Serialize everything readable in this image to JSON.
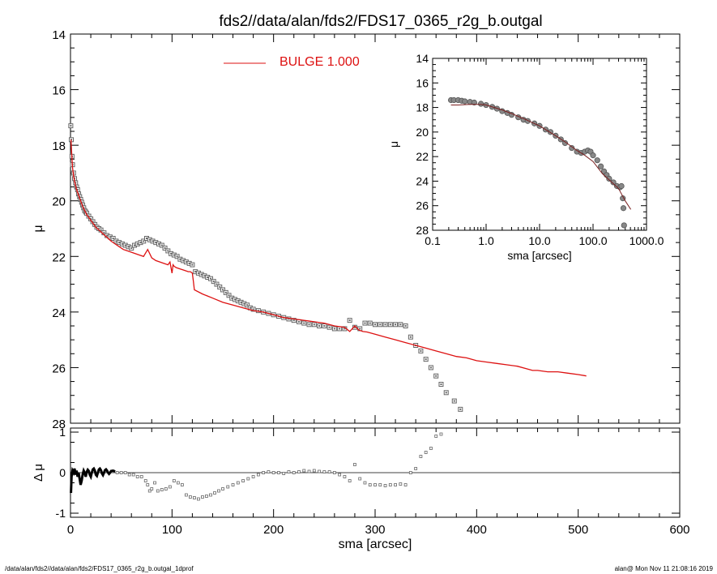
{
  "title": "fds2//data/alan/fds2/FDS17_0365_r2g_b.outgal",
  "footer_left": "/data/alan/fds2//data/alan/fds2/FDS17_0365_r2g_b.outgal_1dprof",
  "footer_right": "alan@  Mon Nov 11 21:08:16 2019",
  "colors": {
    "model": "#dd1111",
    "data": "#666666",
    "axis": "#000000"
  },
  "chart_data": [
    {
      "id": "main",
      "type": "scatter",
      "xlabel": "",
      "ylabel": "μ",
      "xlim": [
        0,
        600
      ],
      "ylim": [
        28,
        14
      ],
      "yticks": [
        14,
        16,
        18,
        20,
        22,
        24,
        26,
        28
      ],
      "xticks": [
        0,
        100,
        200,
        300,
        400,
        500,
        600
      ],
      "legend": {
        "label": "BULGE  1.000",
        "position": "top-center"
      },
      "series": [
        {
          "name": "BULGE  1.000",
          "kind": "line",
          "x": [
            0.5,
            1,
            2,
            3,
            4,
            6,
            8,
            10,
            12,
            14,
            16,
            18,
            20,
            22,
            25,
            28,
            31,
            34,
            37,
            40,
            44,
            48,
            52,
            56,
            60,
            64,
            68,
            72,
            76,
            80,
            84,
            88,
            92,
            96,
            98,
            100,
            101,
            102,
            104,
            108,
            112,
            116,
            118,
            120,
            121,
            122,
            130,
            140,
            150,
            160,
            170,
            180,
            190,
            200,
            210,
            220,
            230,
            240,
            250,
            260,
            270,
            275,
            280,
            284,
            288,
            292,
            300,
            310,
            320,
            330,
            340,
            350,
            360,
            370,
            380,
            390,
            400,
            410,
            420,
            430,
            440,
            450,
            455,
            460,
            470,
            480,
            490,
            500,
            508
          ],
          "y": [
            17.8,
            18.2,
            18.8,
            19.1,
            19.3,
            19.6,
            19.8,
            20.0,
            20.2,
            20.35,
            20.5,
            20.6,
            20.7,
            20.8,
            20.95,
            21.05,
            21.15,
            21.25,
            21.35,
            21.45,
            21.55,
            21.65,
            21.75,
            21.8,
            21.85,
            21.9,
            21.95,
            22.0,
            21.75,
            22.05,
            22.15,
            22.2,
            22.25,
            22.3,
            22.2,
            22.6,
            22.3,
            22.35,
            22.4,
            22.45,
            22.5,
            22.55,
            22.55,
            22.6,
            22.9,
            23.2,
            23.35,
            23.5,
            23.65,
            23.75,
            23.85,
            23.95,
            24.0,
            24.1,
            24.2,
            24.25,
            24.3,
            24.35,
            24.4,
            24.5,
            24.55,
            24.7,
            24.5,
            24.65,
            24.7,
            24.72,
            24.8,
            24.9,
            25.0,
            25.1,
            25.2,
            25.3,
            25.4,
            25.5,
            25.6,
            25.65,
            25.75,
            25.8,
            25.85,
            25.9,
            25.95,
            26.05,
            26.1,
            26.1,
            26.15,
            26.15,
            26.2,
            26.25,
            26.3
          ]
        },
        {
          "name": "",
          "kind": "points",
          "x": [
            0.3,
            0.8,
            1.5,
            2,
            3,
            4,
            5,
            6,
            7,
            8,
            9,
            10,
            11,
            12,
            13,
            14,
            15,
            16,
            18,
            20,
            22,
            24,
            26,
            28,
            30,
            33,
            36,
            39,
            42,
            45,
            48,
            51,
            54,
            57,
            60,
            63,
            66,
            69,
            72,
            75,
            78,
            81,
            84,
            87,
            90,
            93,
            96,
            99,
            102,
            105,
            108,
            111,
            114,
            117,
            120,
            123,
            126,
            129,
            132,
            135,
            138,
            141,
            144,
            147,
            150,
            153,
            156,
            159,
            162,
            165,
            168,
            171,
            174,
            177,
            180,
            185,
            190,
            195,
            200,
            205,
            210,
            215,
            220,
            225,
            230,
            235,
            240,
            245,
            250,
            255,
            260,
            265,
            270,
            275,
            280,
            285,
            290,
            295,
            300,
            305,
            310,
            315,
            320,
            325,
            330,
            335,
            340,
            345,
            350,
            355,
            360,
            365,
            370,
            378,
            384
          ],
          "y": [
            17.3,
            17.8,
            18.4,
            18.7,
            19.0,
            19.2,
            19.35,
            19.5,
            19.6,
            19.75,
            19.85,
            19.95,
            20.05,
            20.15,
            20.25,
            20.35,
            20.4,
            20.45,
            20.55,
            20.65,
            20.75,
            20.85,
            20.95,
            21.0,
            21.05,
            21.15,
            21.25,
            21.3,
            21.35,
            21.45,
            21.5,
            21.55,
            21.6,
            21.65,
            21.7,
            21.6,
            21.55,
            21.5,
            21.45,
            21.35,
            21.4,
            21.45,
            21.5,
            21.55,
            21.6,
            21.7,
            21.8,
            21.9,
            21.95,
            22.0,
            22.1,
            22.15,
            22.2,
            22.25,
            22.3,
            22.55,
            22.6,
            22.65,
            22.7,
            22.75,
            22.8,
            22.9,
            23.0,
            23.1,
            23.2,
            23.3,
            23.4,
            23.5,
            23.55,
            23.6,
            23.65,
            23.7,
            23.75,
            23.85,
            23.9,
            23.95,
            24.0,
            24.05,
            24.1,
            24.15,
            24.2,
            24.25,
            24.3,
            24.35,
            24.4,
            24.45,
            24.45,
            24.5,
            24.5,
            24.55,
            24.6,
            24.6,
            24.6,
            24.3,
            24.55,
            24.6,
            24.4,
            24.4,
            24.45,
            24.45,
            24.45,
            24.45,
            24.45,
            24.45,
            24.5,
            24.9,
            25.2,
            25.4,
            25.7,
            26.0,
            26.3,
            26.6,
            26.9,
            27.2,
            27.5
          ]
        }
      ]
    },
    {
      "id": "residual",
      "type": "scatter",
      "xlabel": "sma [arcsec]",
      "ylabel": "Δ μ",
      "xlim": [
        0,
        600
      ],
      "ylim": [
        -1.1,
        1.1
      ],
      "yticks": [
        -1,
        0,
        1
      ],
      "xticks": [
        0,
        100,
        200,
        300,
        400,
        500,
        600
      ],
      "series": [
        {
          "name": "",
          "kind": "line",
          "x": [
            0.5,
            1,
            2,
            3,
            4,
            5,
            6,
            7,
            8,
            9,
            10,
            11,
            12,
            13,
            14,
            15,
            16,
            17,
            18,
            19,
            20,
            21,
            22,
            23,
            24,
            25,
            26,
            27,
            28,
            29,
            30,
            31,
            32,
            33,
            34,
            35,
            36,
            37,
            38,
            39,
            40,
            42,
            44
          ],
          "y": [
            -0.5,
            -0.1,
            0.05,
            0.0,
            0.1,
            -0.05,
            0.05,
            -0.1,
            0.0,
            -0.15,
            -0.3,
            -0.2,
            -0.05,
            0.05,
            0.0,
            -0.1,
            0.02,
            0.07,
            0.04,
            -0.05,
            -0.1,
            0.0,
            0.08,
            0.1,
            0.05,
            -0.05,
            -0.08,
            0.0,
            0.08,
            0.1,
            0.06,
            -0.02,
            -0.06,
            0.0,
            0.06,
            0.08,
            0.05,
            0.0,
            -0.03,
            0.0,
            0.04,
            0.05,
            0.03
          ]
        },
        {
          "name": "",
          "kind": "points",
          "x": [
            46,
            50,
            54,
            58,
            62,
            66,
            70,
            74,
            76,
            78,
            80,
            83,
            86,
            90,
            94,
            98,
            102,
            106,
            110,
            114,
            118,
            122,
            126,
            130,
            134,
            138,
            142,
            146,
            150,
            155,
            160,
            165,
            170,
            175,
            180,
            185,
            190,
            195,
            200,
            205,
            210,
            215,
            220,
            225,
            230,
            235,
            240,
            245,
            250,
            255,
            260,
            265,
            270,
            275,
            280,
            285,
            290,
            295,
            300,
            305,
            310,
            315,
            320,
            325,
            330,
            335,
            340,
            345,
            350,
            355,
            360,
            365
          ],
          "y": [
            0.0,
            0.0,
            0.0,
            -0.05,
            -0.05,
            -0.1,
            -0.1,
            -0.2,
            -0.3,
            -0.45,
            -0.4,
            -0.25,
            -0.45,
            -0.42,
            -0.4,
            -0.35,
            -0.2,
            -0.25,
            -0.3,
            -0.55,
            -0.6,
            -0.62,
            -0.65,
            -0.6,
            -0.58,
            -0.55,
            -0.5,
            -0.45,
            -0.4,
            -0.35,
            -0.3,
            -0.25,
            -0.2,
            -0.15,
            -0.1,
            -0.05,
            0.0,
            0.02,
            0.0,
            0.0,
            -0.02,
            0.02,
            0.0,
            0.02,
            0.05,
            0.03,
            0.05,
            0.03,
            0.02,
            0.02,
            0.0,
            -0.05,
            -0.1,
            -0.2,
            0.2,
            -0.15,
            -0.25,
            -0.3,
            -0.3,
            -0.3,
            -0.32,
            -0.3,
            -0.3,
            -0.28,
            -0.3,
            0.0,
            0.1,
            0.4,
            0.5,
            0.6,
            0.9,
            0.95
          ]
        }
      ]
    },
    {
      "id": "inset",
      "type": "scatter",
      "xlabel": "sma [arcsec]",
      "ylabel": "μ",
      "xscale": "log",
      "xlim": [
        0.1,
        1000.0
      ],
      "ylim": [
        28,
        14
      ],
      "yticks": [
        14,
        16,
        18,
        20,
        22,
        24,
        26,
        28
      ],
      "xticks": [
        0.1,
        1.0,
        10.0,
        100.0,
        1000.0
      ],
      "xticklabels": [
        "0.1",
        "1.0",
        "10.0",
        "100.0",
        "1000.0"
      ],
      "series": [
        {
          "name": "",
          "kind": "points",
          "x": [
            0.22,
            0.25,
            0.3,
            0.35,
            0.4,
            0.5,
            0.6,
            0.8,
            1.0,
            1.3,
            1.6,
            2.0,
            2.5,
            3.0,
            4.0,
            5.0,
            6.0,
            8.0,
            10.0,
            13.0,
            16.0,
            20.0,
            25.0,
            30.0,
            40.0,
            50.0,
            60.0,
            70.0,
            80.0,
            90.0,
            100.0,
            120.0,
            140.0,
            160.0,
            180.0,
            200.0,
            240.0,
            280.0,
            320.0,
            340.0,
            360.0,
            370.0,
            380.0
          ],
          "y": [
            17.4,
            17.4,
            17.4,
            17.45,
            17.5,
            17.55,
            17.6,
            17.7,
            17.8,
            17.95,
            18.1,
            18.3,
            18.45,
            18.6,
            18.8,
            19.0,
            19.1,
            19.3,
            19.5,
            19.8,
            20.0,
            20.3,
            20.6,
            20.9,
            21.3,
            21.6,
            21.7,
            21.6,
            21.5,
            21.6,
            21.9,
            22.3,
            22.8,
            23.2,
            23.5,
            23.8,
            24.1,
            24.4,
            24.5,
            24.4,
            25.4,
            26.2,
            27.6
          ]
        },
        {
          "name": "",
          "kind": "line",
          "x": [
            0.22,
            0.3,
            0.5,
            0.8,
            1.0,
            2.0,
            3.0,
            5.0,
            10.0,
            20.0,
            30.0,
            50.0,
            70.0,
            100.0,
            150.0,
            200.0,
            300.0,
            400.0,
            508.0
          ],
          "y": [
            17.8,
            17.8,
            17.75,
            17.75,
            17.8,
            18.2,
            18.5,
            18.9,
            19.5,
            20.3,
            20.8,
            21.5,
            21.9,
            22.4,
            23.4,
            23.9,
            24.6,
            25.6,
            26.3
          ]
        }
      ]
    }
  ]
}
